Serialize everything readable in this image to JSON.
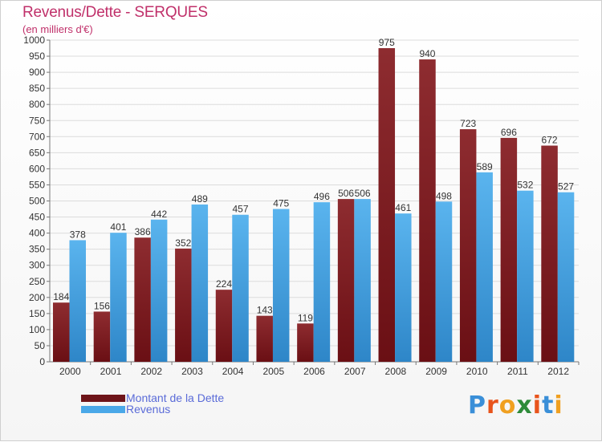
{
  "title": "Revenus/Dette - SERQUES",
  "subtitle": "(en milliers d'€)",
  "brand": {
    "letters": [
      "P",
      "r",
      "o",
      "x",
      "i",
      "t",
      "i"
    ],
    "colors": [
      "#3a8fd8",
      "#e8541c",
      "#f0a020",
      "#2e8b3a",
      "#e8541c",
      "#3a8fd8",
      "#f0a020"
    ]
  },
  "legend": [
    {
      "label": "Montant de la Dette",
      "color": "#6e1419"
    },
    {
      "label": "Revenus",
      "color": "#4aa8e8"
    }
  ],
  "chart_data": {
    "type": "bar",
    "categories": [
      "2000",
      "2001",
      "2002",
      "2003",
      "2004",
      "2005",
      "2006",
      "2007",
      "2008",
      "2009",
      "2010",
      "2011",
      "2012"
    ],
    "series": [
      {
        "name": "Montant de la Dette",
        "color": "#6e1419",
        "values": [
          184,
          156,
          386,
          352,
          224,
          143,
          119,
          506,
          975,
          940,
          723,
          696,
          672
        ]
      },
      {
        "name": "Revenus",
        "color": "#4aa8e8",
        "values": [
          378,
          401,
          442,
          489,
          457,
          475,
          496,
          506,
          461,
          498,
          589,
          532,
          527
        ]
      }
    ],
    "ylim": [
      0,
      1000
    ],
    "ytick_step": 50,
    "grid": true,
    "legend_position": "bottom-left"
  }
}
